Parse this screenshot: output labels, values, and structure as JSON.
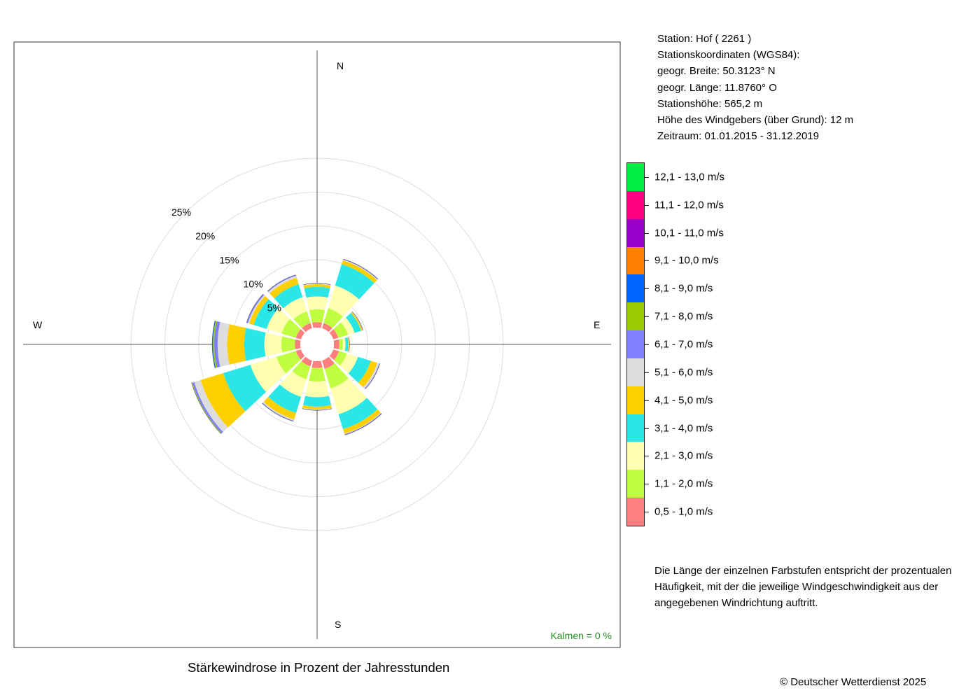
{
  "chart_data": {
    "type": "windrose",
    "title": "Stärkewindrose in Prozent der Jahresstunden",
    "radial_ticks": [
      5,
      10,
      15,
      20,
      25
    ],
    "radial_tick_labels": [
      "5%",
      "10%",
      "15%",
      "20%",
      "25%"
    ],
    "radial_max": 25,
    "calm_offset_percent": 2.5,
    "cardinal_labels": {
      "N": "N",
      "E": "E",
      "S": "S",
      "W": "W"
    },
    "calm_text": "Kalmen  =  0 %",
    "directions_deg": [
      0,
      30,
      60,
      90,
      120,
      150,
      180,
      210,
      240,
      270,
      300,
      330
    ],
    "speed_classes": [
      {
        "label": "0,5 - 1,0 m/s",
        "color": "#FF7F7F"
      },
      {
        "label": "1,1 - 2,0 m/s",
        "color": "#BFFF3F"
      },
      {
        "label": "2,1 - 3,0 m/s",
        "color": "#FFFFAF"
      },
      {
        "label": "3,1 - 4,0 m/s",
        "color": "#2BE6E6"
      },
      {
        "label": "4,1 - 5,0 m/s",
        "color": "#FFD000"
      },
      {
        "label": "5,1 - 6,0 m/s",
        "color": "#DDDDDD"
      },
      {
        "label": "6,1 - 7,0 m/s",
        "color": "#7F7FFF"
      },
      {
        "label": "7,1 - 8,0 m/s",
        "color": "#99CC00"
      },
      {
        "label": "8,1 - 9,0 m/s",
        "color": "#0066FF"
      },
      {
        "label": "9,1 - 10,0 m/s",
        "color": "#FF7F00"
      },
      {
        "label": "10,1 - 11,0 m/s",
        "color": "#9900CC"
      },
      {
        "label": "11,1 - 12,0 m/s",
        "color": "#FF007F"
      },
      {
        "label": "12,1 - 13,0 m/s",
        "color": "#00EE44"
      }
    ],
    "series": [
      {
        "direction": 0,
        "values": [
          0.8,
          1.9,
          1.9,
          1.4,
          0.4,
          0.1,
          0.05,
          0,
          0,
          0,
          0,
          0,
          0
        ]
      },
      {
        "direction": 30,
        "values": [
          0.8,
          2.3,
          3.5,
          3.3,
          0.6,
          0.1,
          0.1,
          0,
          0,
          0,
          0,
          0,
          0
        ]
      },
      {
        "direction": 60,
        "values": [
          0.8,
          1.5,
          1.0,
          1.0,
          0.2,
          0.05,
          0.05,
          0,
          0,
          0,
          0,
          0,
          0
        ]
      },
      {
        "direction": 90,
        "values": [
          0.8,
          0.5,
          0.4,
          0.4,
          0.15,
          0.05,
          0,
          0,
          0,
          0,
          0,
          0,
          0
        ]
      },
      {
        "direction": 120,
        "values": [
          0.9,
          1.2,
          1.7,
          2.0,
          1.0,
          0.3,
          0.1,
          0,
          0,
          0,
          0,
          0,
          0
        ]
      },
      {
        "direction": 150,
        "values": [
          1.3,
          3.0,
          4.0,
          2.3,
          0.7,
          0.1,
          0.1,
          0,
          0,
          0,
          0,
          0,
          0
        ]
      },
      {
        "direction": 180,
        "values": [
          1.0,
          2.0,
          2.3,
          1.4,
          0.4,
          0.1,
          0.05,
          0,
          0,
          0,
          0,
          0,
          0
        ]
      },
      {
        "direction": 210,
        "values": [
          0.9,
          2.0,
          2.7,
          2.5,
          1.0,
          0.2,
          0.1,
          0,
          0,
          0,
          0,
          0,
          0
        ]
      },
      {
        "direction": 240,
        "values": [
          0.8,
          3.0,
          4.0,
          4.2,
          3.5,
          1.0,
          0.3,
          0.1,
          0,
          0,
          0,
          0,
          0
        ]
      },
      {
        "direction": 270,
        "values": [
          0.8,
          2.0,
          2.5,
          3.0,
          2.5,
          1.4,
          0.5,
          0.2,
          0.1,
          0,
          0,
          0,
          0
        ]
      },
      {
        "direction": 300,
        "values": [
          0.8,
          2.2,
          2.3,
          2.0,
          0.7,
          0.2,
          0.2,
          0,
          0,
          0,
          0,
          0,
          0
        ]
      },
      {
        "direction": 330,
        "values": [
          0.8,
          1.8,
          2.2,
          2.0,
          1.0,
          0.3,
          0.15,
          0,
          0,
          0,
          0,
          0,
          0
        ]
      }
    ]
  },
  "station": {
    "line1": "Station:  Hof  ( 2261 )",
    "line2": "Stationskoordinaten (WGS84):",
    "line3": "geogr. Breite: 50.3123° N",
    "line4": "geogr. Länge: 11.8760° O",
    "line5": "Stationshöhe: 565,2 m",
    "line6": "Höhe des Windgebers (über Grund): 12 m",
    "line7": "Zeitraum: 01.01.2015 - 31.12.2019"
  },
  "note": "Die Länge der einzelnen Farbstufen entspricht der prozentualen Häufigkeit, mit der die jeweilige Windgeschwindigkeit aus der angegebenen Windrichtung auftritt.",
  "copyright": "© Deutscher Wetterdienst  2025"
}
